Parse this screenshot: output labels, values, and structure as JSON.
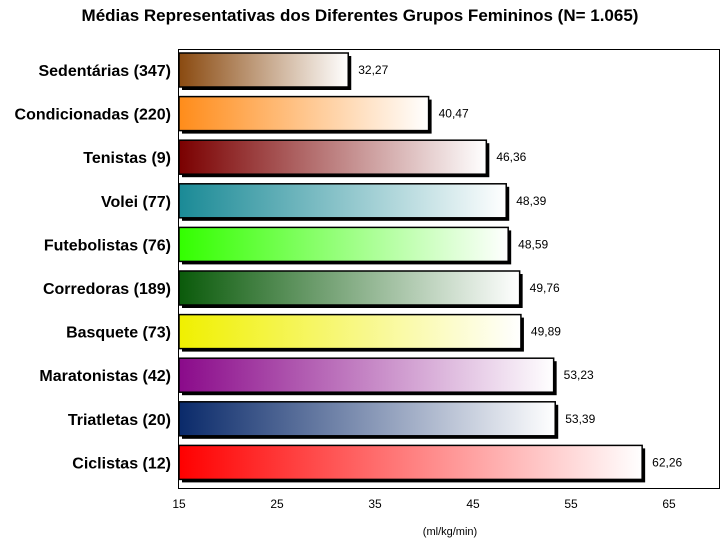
{
  "chart_data": {
    "type": "bar",
    "orientation": "horizontal",
    "title": "Médias Representativas dos Diferentes Grupos Femininos (N= 1.065)",
    "xlabel": "(ml/kg/min)",
    "ylabel": "",
    "xlim": [
      15,
      70
    ],
    "xticks": [
      15,
      25,
      35,
      45,
      55,
      65
    ],
    "grid": false,
    "categories": [
      "Sedentárias (347)",
      "Condicionadas (220)",
      "Tenistas (9)",
      "Volei (77)",
      "Futebolistas (76)",
      "Corredoras (189)",
      "Basquete (73)",
      "Maratonistas (42)",
      "Triatletas (20)",
      "Ciclistas (12)"
    ],
    "values": [
      32.27,
      40.47,
      46.36,
      48.39,
      48.59,
      49.76,
      49.89,
      53.23,
      53.39,
      62.26
    ],
    "value_labels": [
      "32,27",
      "40,47",
      "46,36",
      "48,39",
      "48,59",
      "49,76",
      "49,89",
      "53,23",
      "53,39",
      "62,26"
    ],
    "colors": [
      "#8a4a10",
      "#ff8c1a",
      "#7a0000",
      "#1a8a96",
      "#33ff00",
      "#0a5a0a",
      "#f0f000",
      "#8a0a8a",
      "#0a2a6a",
      "#ff0000"
    ]
  }
}
